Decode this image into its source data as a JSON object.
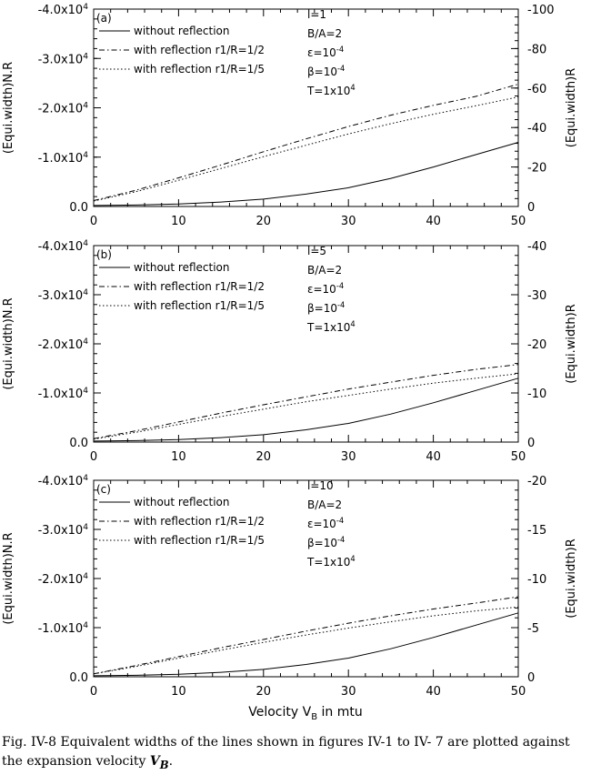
{
  "x_axis_title": "Velocity V",
  "x_axis_title_sub": "B",
  "x_axis_title_suffix": " in mtu",
  "caption": {
    "text": "Fig. IV-8 Equivalent widths of the lines shown in figures IV-1 to IV- 7 are plotted against the expansion velocity ",
    "variable": "V",
    "variable_sub": "B",
    "end": "."
  },
  "chart_data": [
    {
      "type": "line",
      "panel_label": "(a)",
      "xlabel": "Velocity V_B in mtu",
      "ylabel_left": "(Equi.width)N.R",
      "ylabel_right": "(Equi.width)R",
      "xlim": [
        0,
        50
      ],
      "x_ticks": [
        0,
        10,
        20,
        30,
        40,
        50
      ],
      "ylim_left": [
        0,
        -40000
      ],
      "y_ticks_left": [
        "0.0",
        "-1.0x10^4",
        "-2.0x10^4",
        "-3.0x10^4",
        "-4.0x10^4"
      ],
      "y_tick_values_left": [
        0,
        -10000,
        -20000,
        -30000,
        -40000
      ],
      "ylim_right": [
        0,
        -100
      ],
      "y_ticks_right": [
        "0",
        "-20",
        "-40",
        "-60",
        "-80",
        "-100"
      ],
      "y_tick_values_right": [
        0,
        -20,
        -40,
        -60,
        -80,
        -100
      ],
      "params": [
        "l=1",
        "B/A=2",
        "ε=10^-4",
        "β=10^-4",
        "T=1x10^4"
      ],
      "legend_position": "top-left",
      "series": [
        {
          "name": "without reflection",
          "style": "solid",
          "axis": "left",
          "x": [
            0,
            5,
            10,
            15,
            20,
            25,
            30,
            35,
            40,
            45,
            50
          ],
          "y": [
            -200,
            -300,
            -500,
            -900,
            -1500,
            -2500,
            -3800,
            -5700,
            -8000,
            -10500,
            -13000
          ]
        },
        {
          "name": "with reflection r1/R=1/2",
          "style": "dashdot",
          "axis": "left",
          "x": [
            0,
            5,
            10,
            15,
            20,
            25,
            30,
            35,
            40,
            45,
            50
          ],
          "y": [
            -1200,
            -3300,
            -5800,
            -8400,
            -11100,
            -13700,
            -16200,
            -18500,
            -20500,
            -22300,
            -24800
          ]
        },
        {
          "name": "with reflection r1/R=1/5",
          "style": "dotted",
          "axis": "left",
          "x": [
            0,
            5,
            10,
            15,
            20,
            25,
            30,
            35,
            40,
            45,
            50
          ],
          "y": [
            -1100,
            -3000,
            -5300,
            -7700,
            -10100,
            -12400,
            -14700,
            -16800,
            -18700,
            -20400,
            -22200
          ]
        }
      ]
    },
    {
      "type": "line",
      "panel_label": "(b)",
      "xlabel": "Velocity V_B in mtu",
      "ylabel_left": "(Equi.width)N.R",
      "ylabel_right": "(Equi.width)R",
      "xlim": [
        0,
        50
      ],
      "x_ticks": [
        0,
        10,
        20,
        30,
        40,
        50
      ],
      "ylim_left": [
        0,
        -40000
      ],
      "y_ticks_left": [
        "0.0",
        "-1.0x10^4",
        "-2.0x10^4",
        "-3.0x10^4",
        "-4.0x10^4"
      ],
      "y_tick_values_left": [
        0,
        -10000,
        -20000,
        -30000,
        -40000
      ],
      "ylim_right": [
        0,
        -40
      ],
      "y_ticks_right": [
        "0",
        "-10",
        "-20",
        "-30",
        "-40"
      ],
      "y_tick_values_right": [
        0,
        -10,
        -20,
        -30,
        -40
      ],
      "params": [
        "l=5",
        "B/A=2",
        "ε=10^-4",
        "β=10^-4",
        "T=1x10^4"
      ],
      "legend_position": "top-left",
      "series": [
        {
          "name": "without reflection",
          "style": "solid",
          "axis": "left",
          "x": [
            0,
            5,
            10,
            15,
            20,
            25,
            30,
            35,
            40,
            45,
            50
          ],
          "y": [
            -200,
            -300,
            -500,
            -900,
            -1500,
            -2500,
            -3800,
            -5700,
            -8000,
            -10500,
            -13000
          ]
        },
        {
          "name": "with reflection r1/R=1/2",
          "style": "dashdot",
          "axis": "left",
          "x": [
            0,
            5,
            10,
            15,
            20,
            25,
            30,
            35,
            40,
            45,
            50
          ],
          "y": [
            -700,
            -2300,
            -4100,
            -5900,
            -7600,
            -9200,
            -10800,
            -12200,
            -13600,
            -14800,
            -15800
          ]
        },
        {
          "name": "with reflection r1/R=1/5",
          "style": "dotted",
          "axis": "left",
          "x": [
            0,
            5,
            10,
            15,
            20,
            25,
            30,
            35,
            40,
            45,
            50
          ],
          "y": [
            -600,
            -2000,
            -3600,
            -5200,
            -6700,
            -8200,
            -9500,
            -10800,
            -12000,
            -13000,
            -13900
          ]
        }
      ]
    },
    {
      "type": "line",
      "panel_label": "(c)",
      "xlabel": "Velocity V_B in mtu",
      "ylabel_left": "(Equi.width)N.R",
      "ylabel_right": "(Equi.width)R",
      "xlim": [
        0,
        50
      ],
      "x_ticks": [
        0,
        10,
        20,
        30,
        40,
        50
      ],
      "ylim_left": [
        0,
        -40000
      ],
      "y_ticks_left": [
        "0.0",
        "-1.0x10^4",
        "-2.0x10^4",
        "-3.0x10^4",
        "-4.0x10^4"
      ],
      "y_tick_values_left": [
        0,
        -10000,
        -20000,
        -30000,
        -40000
      ],
      "ylim_right": [
        0,
        -20
      ],
      "y_ticks_right": [
        "0",
        "-5",
        "-10",
        "-15",
        "-20"
      ],
      "y_tick_values_right": [
        0,
        -5,
        -10,
        -15,
        -20
      ],
      "params": [
        "l=10",
        "B/A=2",
        "ε=10^-4",
        "β=10^-4",
        "T=1x10^4"
      ],
      "legend_position": "top-left",
      "series": [
        {
          "name": "without reflection",
          "style": "solid",
          "axis": "left",
          "x": [
            0,
            5,
            10,
            15,
            20,
            25,
            30,
            35,
            40,
            45,
            50
          ],
          "y": [
            -200,
            -300,
            -500,
            -900,
            -1500,
            -2500,
            -3800,
            -5700,
            -8000,
            -10500,
            -13000
          ]
        },
        {
          "name": "with reflection r1/R=1/2",
          "style": "dashdot",
          "axis": "left",
          "x": [
            0,
            5,
            10,
            15,
            20,
            25,
            30,
            35,
            40,
            45,
            50
          ],
          "y": [
            -600,
            -2300,
            -4100,
            -5900,
            -7600,
            -9300,
            -10900,
            -12400,
            -13800,
            -15000,
            -16300
          ]
        },
        {
          "name": "with reflection r1/R=1/5",
          "style": "dotted",
          "axis": "left",
          "x": [
            0,
            5,
            10,
            15,
            20,
            25,
            30,
            35,
            40,
            45,
            50
          ],
          "y": [
            -600,
            -2100,
            -3800,
            -5400,
            -7000,
            -8500,
            -9900,
            -11200,
            -12400,
            -13400,
            -14200
          ]
        }
      ]
    }
  ]
}
